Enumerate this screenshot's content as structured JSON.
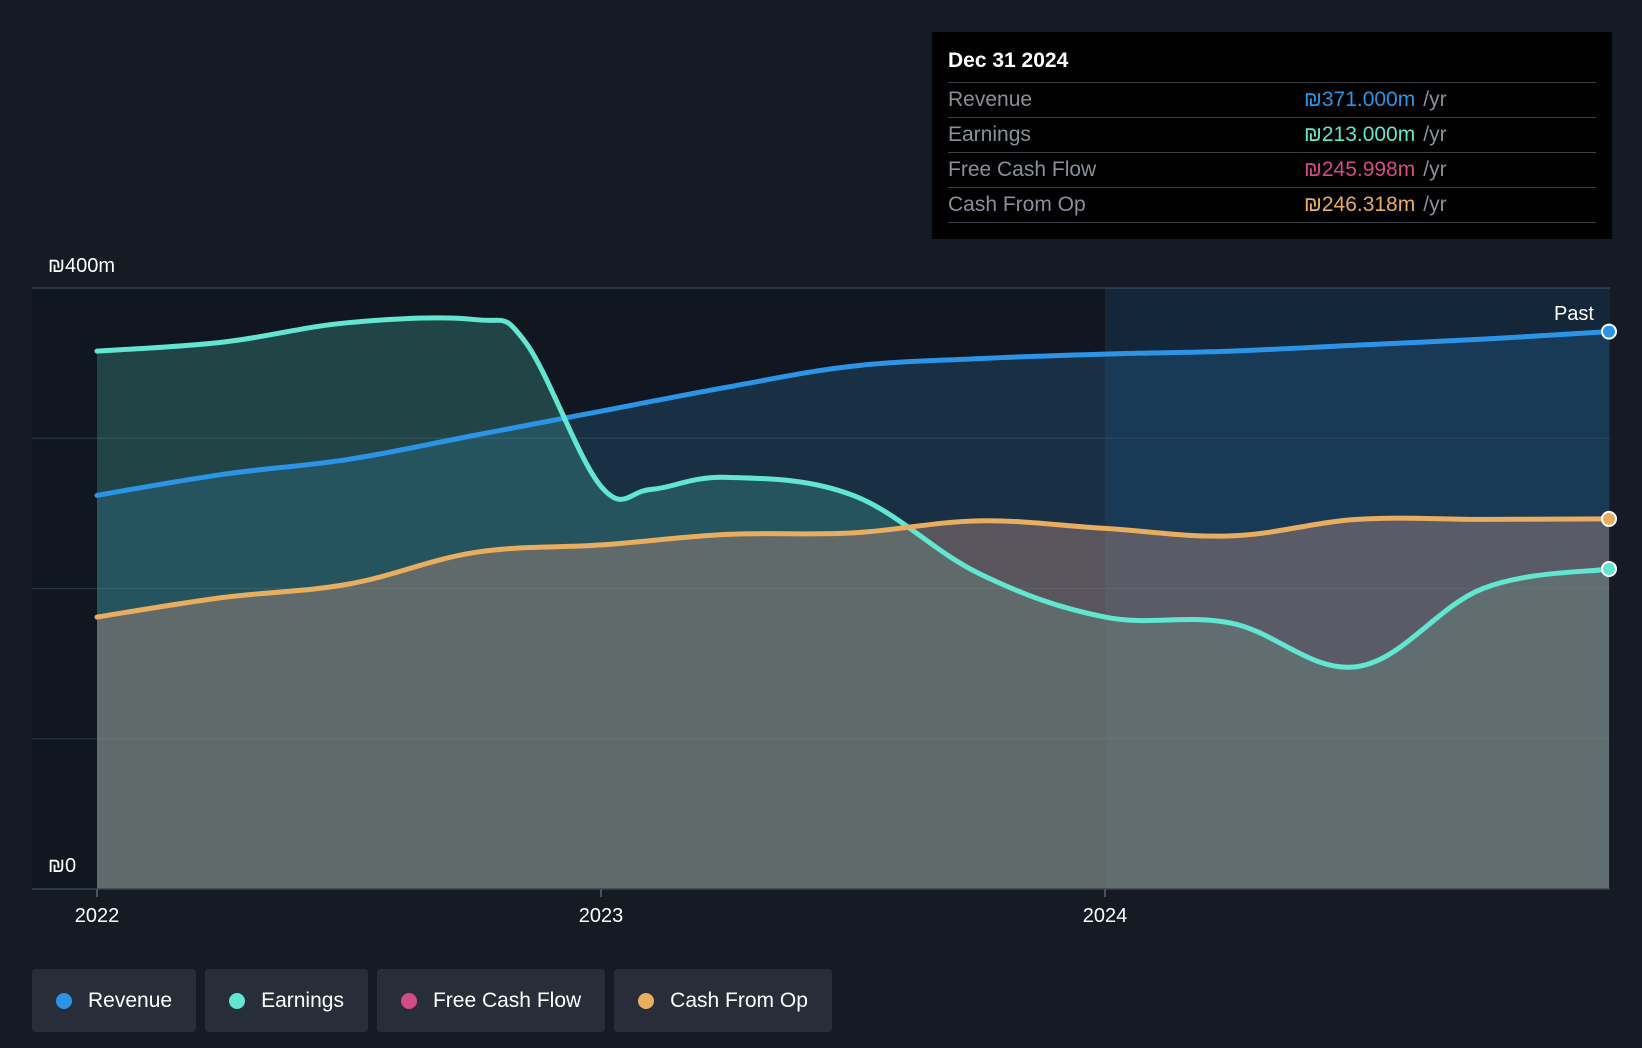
{
  "tooltip": {
    "date": "Dec 31 2024",
    "unit": "/yr",
    "rows": [
      {
        "label": "Revenue",
        "value": "₪371.000m"
      },
      {
        "label": "Earnings",
        "value": "₪213.000m"
      },
      {
        "label": "Free Cash Flow",
        "value": "₪245.998m"
      },
      {
        "label": "Cash From Op",
        "value": "₪246.318m"
      }
    ]
  },
  "legend": {
    "items": [
      {
        "label": "Revenue"
      },
      {
        "label": "Earnings"
      },
      {
        "label": "Free Cash Flow"
      },
      {
        "label": "Cash From Op"
      }
    ]
  },
  "colors": {
    "Revenue": "#2b94e6",
    "Earnings": "#62e6cf",
    "Free Cash Flow": "#d24c88",
    "Cash From Op": "#e9ad60",
    "background": "#151b24"
  },
  "chart_data": {
    "type": "area",
    "ylim": [
      0,
      400
    ],
    "xlim": [
      2022,
      2025
    ],
    "y_tick_labels": [
      "₪400m",
      "₪0"
    ],
    "x_tick_labels": [
      "2022",
      "2023",
      "2024"
    ],
    "x_ticks": [
      2022,
      2023,
      2024
    ],
    "gridlines": [
      100,
      200,
      300
    ],
    "grid": true,
    "past_label": "Past",
    "past_start": 2024,
    "series": [
      {
        "name": "Revenue",
        "points": [
          [
            2022.0,
            262
          ],
          [
            2022.25,
            276
          ],
          [
            2022.5,
            286
          ],
          [
            2022.75,
            302
          ],
          [
            2023.0,
            318
          ],
          [
            2023.25,
            334
          ],
          [
            2023.5,
            348
          ],
          [
            2023.75,
            353
          ],
          [
            2024.0,
            356
          ],
          [
            2024.25,
            358
          ],
          [
            2024.5,
            362
          ],
          [
            2024.75,
            366
          ],
          [
            2025.0,
            371
          ]
        ]
      },
      {
        "name": "Earnings",
        "points": [
          [
            2022.0,
            358
          ],
          [
            2022.25,
            364
          ],
          [
            2022.5,
            377
          ],
          [
            2022.75,
            379
          ],
          [
            2022.85,
            364
          ],
          [
            2023.0,
            268
          ],
          [
            2023.1,
            266
          ],
          [
            2023.25,
            274
          ],
          [
            2023.5,
            262
          ],
          [
            2023.75,
            210
          ],
          [
            2024.0,
            181
          ],
          [
            2024.25,
            177
          ],
          [
            2024.5,
            148
          ],
          [
            2024.75,
            200
          ],
          [
            2025.0,
            213
          ]
        ]
      },
      {
        "name": "Cash From Op",
        "points": [
          [
            2022.0,
            181
          ],
          [
            2022.25,
            194
          ],
          [
            2022.5,
            203
          ],
          [
            2022.75,
            224
          ],
          [
            2023.0,
            229
          ],
          [
            2023.25,
            236
          ],
          [
            2023.5,
            237
          ],
          [
            2023.75,
            245
          ],
          [
            2024.0,
            240
          ],
          [
            2024.25,
            235
          ],
          [
            2024.5,
            246
          ],
          [
            2024.75,
            246
          ],
          [
            2025.0,
            246.3
          ]
        ]
      }
    ]
  }
}
